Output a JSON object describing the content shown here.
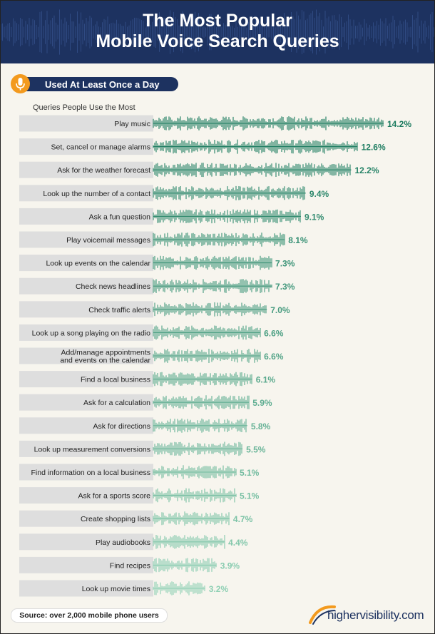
{
  "header": {
    "title_line1": "The Most Popular",
    "title_line2": "Mobile Voice Search Queries"
  },
  "badge": {
    "label": "Used At Least Once a Day",
    "icon": "microphone-icon"
  },
  "footer": {
    "source": "Source: over 2,000 mobile phone users",
    "brand": "highervisibility.com"
  },
  "colors": {
    "navy": "#1d3260",
    "orange": "#f39a1e",
    "teal_dark": "#1a7a5e",
    "teal_light": "#8fd0b4",
    "row_bg": "#dedede"
  },
  "chart_data": {
    "type": "bar",
    "subtitle": "Queries People Use the Most",
    "categories": [
      "Play music",
      "Set, cancel or manage alarms",
      "Ask for the weather forecast",
      "Look up the number of a contact",
      "Ask a fun question",
      "Play voicemail messages",
      "Look up events on the calendar",
      "Check news headlines",
      "Check traffic alerts",
      "Look up a song playing on the radio",
      "Add/manage appointments\nand events on the calendar",
      "Find a local business",
      "Ask for a calculation",
      "Ask for directions",
      "Look up measurement conversions",
      "Find information on a local business",
      "Ask for a sports score",
      "Create shopping lists",
      "Play audiobooks",
      "Find recipes",
      "Look up movie times"
    ],
    "values": [
      14.2,
      12.6,
      12.2,
      9.4,
      9.1,
      8.1,
      7.3,
      7.3,
      7.0,
      6.6,
      6.6,
      6.1,
      5.9,
      5.8,
      5.5,
      5.1,
      5.1,
      4.7,
      4.4,
      3.9,
      3.2
    ],
    "value_labels": [
      "14.2%",
      "12.6%",
      "12.2%",
      "9.4%",
      "9.1%",
      "8.1%",
      "7.3%",
      "7.3%",
      "7.0%",
      "6.6%",
      "6.6%",
      "6.1%",
      "5.9%",
      "5.8%",
      "5.5%",
      "5.1%",
      "5.1%",
      "4.7%",
      "4.4%",
      "3.9%",
      "3.2%"
    ]
  }
}
